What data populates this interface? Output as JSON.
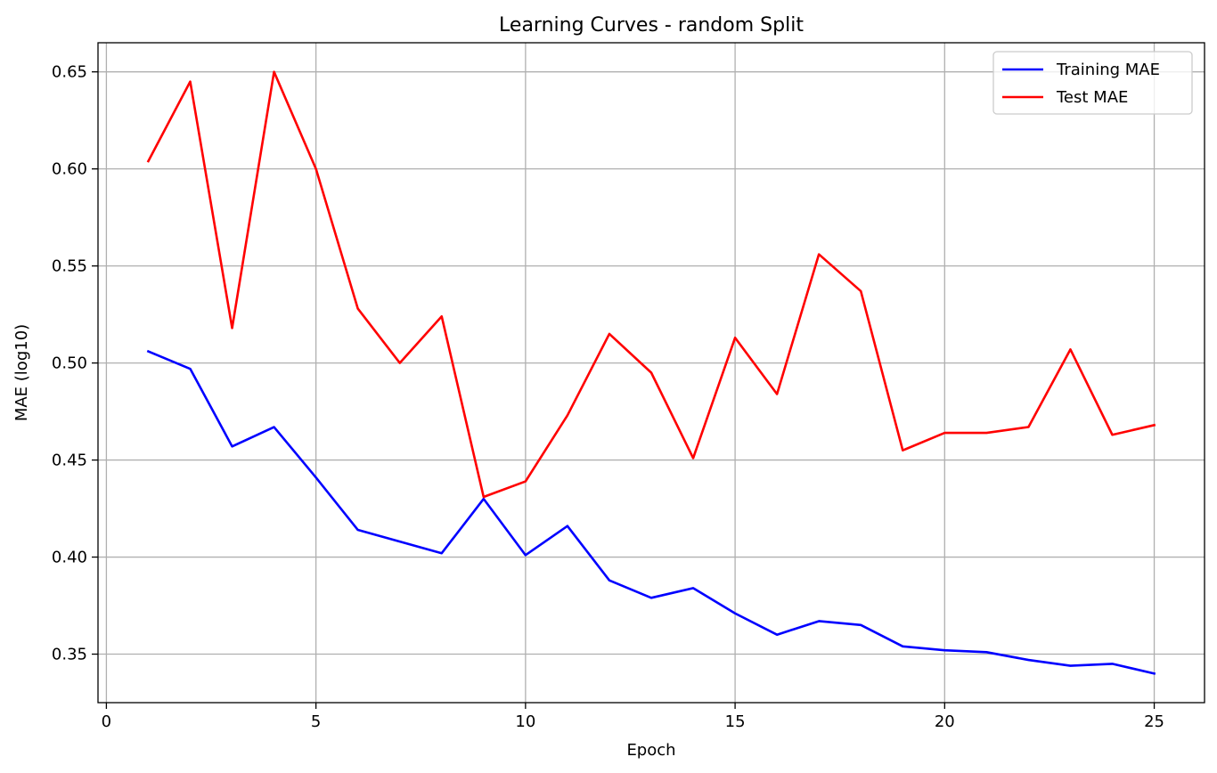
{
  "chart_data": {
    "type": "line",
    "title": "Learning Curves - random Split",
    "xlabel": "Epoch",
    "ylabel": "MAE (log10)",
    "xlim": [
      -0.2,
      26.2
    ],
    "ylim": [
      0.325,
      0.665
    ],
    "xticks": [
      0,
      5,
      10,
      15,
      20,
      25
    ],
    "xtick_labels": [
      "0",
      "5",
      "10",
      "15",
      "20",
      "25"
    ],
    "yticks": [
      0.35,
      0.4,
      0.45,
      0.5,
      0.55,
      0.6,
      0.65
    ],
    "ytick_labels": [
      "0.35",
      "0.40",
      "0.45",
      "0.50",
      "0.55",
      "0.60",
      "0.65"
    ],
    "grid": true,
    "legend_position": "top-right",
    "x": [
      1,
      2,
      3,
      4,
      5,
      6,
      7,
      8,
      9,
      10,
      11,
      12,
      13,
      14,
      15,
      16,
      17,
      18,
      19,
      20,
      21,
      22,
      23,
      24,
      25
    ],
    "series": [
      {
        "name": "Training MAE",
        "color": "#0000ff",
        "values": [
          0.506,
          0.497,
          0.457,
          0.467,
          0.441,
          0.414,
          0.408,
          0.402,
          0.43,
          0.401,
          0.416,
          0.388,
          0.379,
          0.384,
          0.371,
          0.36,
          0.367,
          0.365,
          0.354,
          0.352,
          0.351,
          0.347,
          0.344,
          0.345,
          0.34
        ]
      },
      {
        "name": "Test MAE",
        "color": "#ff0000",
        "values": [
          0.604,
          0.645,
          0.518,
          0.65,
          0.6,
          0.528,
          0.5,
          0.524,
          0.431,
          0.439,
          0.473,
          0.515,
          0.495,
          0.451,
          0.513,
          0.484,
          0.556,
          0.537,
          0.455,
          0.464,
          0.464,
          0.467,
          0.507,
          0.463,
          0.468
        ]
      }
    ]
  }
}
